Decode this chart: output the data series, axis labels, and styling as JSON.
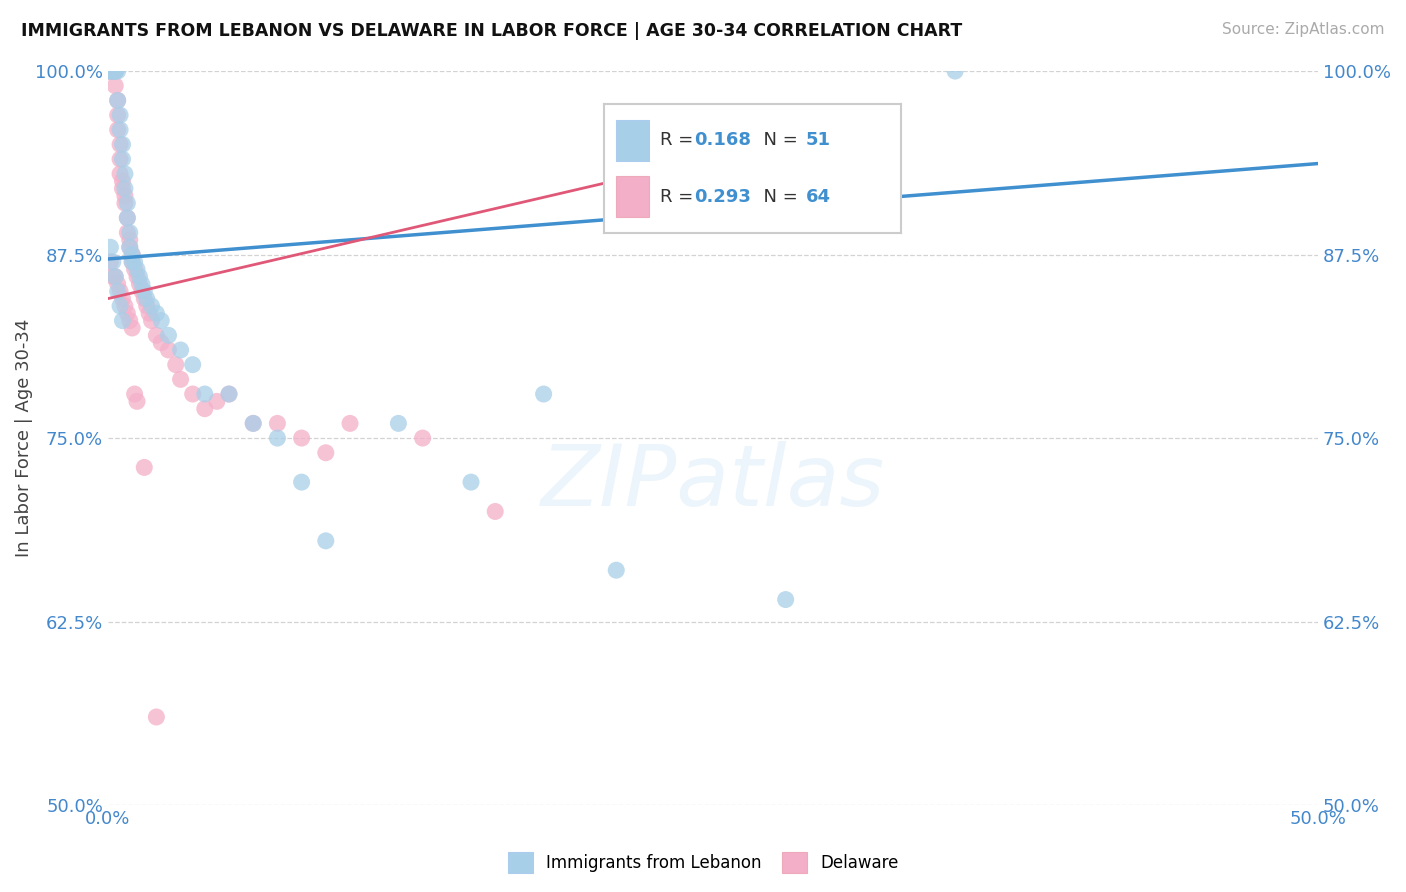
{
  "title": "IMMIGRANTS FROM LEBANON VS DELAWARE IN LABOR FORCE | AGE 30-34 CORRELATION CHART",
  "source": "Source: ZipAtlas.com",
  "ylabel": "In Labor Force | Age 30-34",
  "xlim": [
    0.0,
    0.5
  ],
  "ylim": [
    0.5,
    1.0
  ],
  "ytick_vals": [
    0.5,
    0.625,
    0.75,
    0.875,
    1.0
  ],
  "ytick_labels": [
    "50.0%",
    "62.5%",
    "75.0%",
    "87.5%",
    "100.0%"
  ],
  "xtick_vals": [
    0.0,
    0.05,
    0.1,
    0.15,
    0.2,
    0.25,
    0.3,
    0.35,
    0.4,
    0.45,
    0.5
  ],
  "xtick_labels": [
    "0.0%",
    "",
    "",
    "",
    "",
    "",
    "",
    "",
    "",
    "",
    "50.0%"
  ],
  "blue_fill": "#a8cfe8",
  "pink_fill": "#f4afc8",
  "blue_line": "#4090d0",
  "pink_line": "#e05878",
  "tick_color": "#4488cc",
  "legend_blue_R": "0.168",
  "legend_blue_N": "51",
  "legend_pink_R": "0.293",
  "legend_pink_N": "64",
  "legend_label_blue": "Immigrants from Lebanon",
  "legend_label_pink": "Delaware",
  "watermark": "ZIPatlas",
  "blue_x": [
    0.001,
    0.001,
    0.002,
    0.002,
    0.003,
    0.003,
    0.003,
    0.004,
    0.004,
    0.005,
    0.005,
    0.006,
    0.006,
    0.007,
    0.007,
    0.008,
    0.008,
    0.009,
    0.009,
    0.01,
    0.01,
    0.011,
    0.012,
    0.013,
    0.014,
    0.015,
    0.016,
    0.018,
    0.02,
    0.022,
    0.025,
    0.03,
    0.035,
    0.04,
    0.05,
    0.06,
    0.07,
    0.08,
    0.09,
    0.12,
    0.15,
    0.18,
    0.21,
    0.28,
    0.35,
    0.001,
    0.002,
    0.003,
    0.004,
    0.005,
    0.006
  ],
  "blue_y": [
    1.0,
    1.0,
    1.0,
    1.0,
    1.0,
    1.0,
    1.0,
    1.0,
    0.98,
    0.97,
    0.96,
    0.95,
    0.94,
    0.93,
    0.92,
    0.91,
    0.9,
    0.89,
    0.88,
    0.875,
    0.87,
    0.87,
    0.865,
    0.86,
    0.855,
    0.85,
    0.845,
    0.84,
    0.835,
    0.83,
    0.82,
    0.81,
    0.8,
    0.78,
    0.78,
    0.76,
    0.75,
    0.72,
    0.68,
    0.76,
    0.72,
    0.78,
    0.66,
    0.64,
    1.0,
    0.88,
    0.87,
    0.86,
    0.85,
    0.84,
    0.83
  ],
  "pink_x": [
    0.001,
    0.001,
    0.001,
    0.002,
    0.002,
    0.002,
    0.003,
    0.003,
    0.003,
    0.003,
    0.004,
    0.004,
    0.004,
    0.005,
    0.005,
    0.005,
    0.006,
    0.006,
    0.007,
    0.007,
    0.008,
    0.008,
    0.009,
    0.009,
    0.01,
    0.01,
    0.011,
    0.012,
    0.013,
    0.014,
    0.015,
    0.016,
    0.017,
    0.018,
    0.02,
    0.022,
    0.025,
    0.028,
    0.03,
    0.035,
    0.04,
    0.045,
    0.05,
    0.06,
    0.07,
    0.08,
    0.09,
    0.1,
    0.13,
    0.16,
    0.001,
    0.002,
    0.003,
    0.004,
    0.005,
    0.006,
    0.007,
    0.008,
    0.009,
    0.01,
    0.011,
    0.012,
    0.015,
    0.02
  ],
  "pink_y": [
    1.0,
    1.0,
    1.0,
    1.0,
    1.0,
    1.0,
    1.0,
    1.0,
    1.0,
    0.99,
    0.98,
    0.97,
    0.96,
    0.95,
    0.94,
    0.93,
    0.925,
    0.92,
    0.915,
    0.91,
    0.9,
    0.89,
    0.885,
    0.88,
    0.875,
    0.87,
    0.865,
    0.86,
    0.855,
    0.85,
    0.845,
    0.84,
    0.835,
    0.83,
    0.82,
    0.815,
    0.81,
    0.8,
    0.79,
    0.78,
    0.77,
    0.775,
    0.78,
    0.76,
    0.76,
    0.75,
    0.74,
    0.76,
    0.75,
    0.7,
    0.87,
    0.86,
    0.86,
    0.855,
    0.85,
    0.845,
    0.84,
    0.835,
    0.83,
    0.825,
    0.78,
    0.775,
    0.73,
    0.56
  ],
  "blue_trend_x": [
    0.0,
    0.5
  ],
  "blue_trend_y": [
    0.872,
    0.937
  ],
  "pink_trend_x": [
    0.0,
    0.3
  ],
  "pink_trend_y": [
    0.845,
    0.96
  ]
}
